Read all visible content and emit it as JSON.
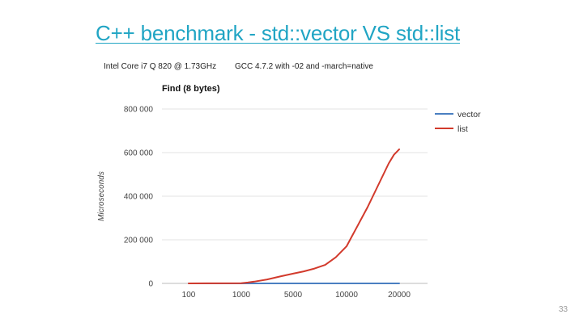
{
  "slide": {
    "title": "C++ benchmark - std::vector VS std::list",
    "subtitle_left": "Intel Core i7 Q 820  @ 1.73GHz",
    "subtitle_right": "GCC 4.7.2 with -02 and -march=native",
    "page_number": "33"
  },
  "chart_data": {
    "type": "line",
    "title": "Find (8 bytes)",
    "xlabel": "",
    "ylabel": "Microseconds",
    "x_tick_labels": [
      "100",
      "1000",
      "5000",
      "10000",
      "20000"
    ],
    "y_tick_labels": [
      "0",
      "200 000",
      "400 000",
      "600 000",
      "800 000"
    ],
    "ylim": [
      0,
      800000
    ],
    "x": [
      100,
      500,
      1000,
      1500,
      2000,
      3000,
      4000,
      5000,
      6000,
      7000,
      8000,
      9000,
      10000,
      11000,
      12000,
      13000,
      14000,
      15000,
      16000,
      17000,
      18000,
      19000,
      20000
    ],
    "series": [
      {
        "name": "vector",
        "color": "#4a7fc1",
        "values": [
          0,
          0,
          0,
          0,
          0,
          0,
          0,
          0,
          0,
          0,
          0,
          0,
          0,
          0,
          0,
          0,
          0,
          0,
          0,
          0,
          0,
          0,
          0
        ]
      },
      {
        "name": "list",
        "color": "#d23a2c",
        "values": [
          0,
          500,
          1000,
          4000,
          8000,
          18000,
          32000,
          45000,
          55000,
          68000,
          85000,
          120000,
          170000,
          215000,
          260000,
          305000,
          350000,
          400000,
          450000,
          500000,
          550000,
          590000,
          615000
        ]
      }
    ],
    "grid": true,
    "legend_position": "right"
  }
}
